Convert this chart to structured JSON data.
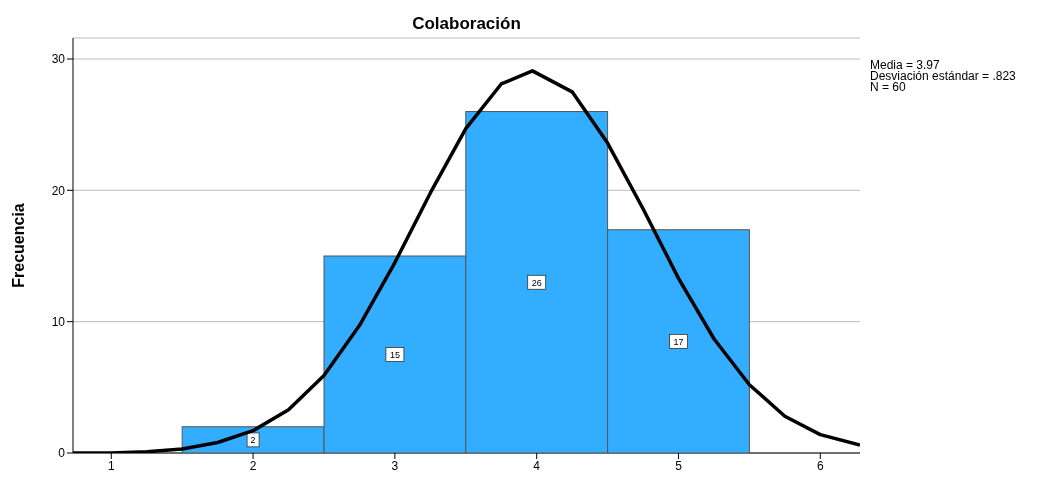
{
  "chart_data": {
    "type": "histogram",
    "title": "Colaboración",
    "ylabel": "Frecuencia",
    "bins": [
      1.5,
      2.5,
      3.5,
      4.5,
      5.5
    ],
    "values": [
      2,
      15,
      26,
      17
    ],
    "color": "#33adff",
    "value_labels": [
      "2",
      "15",
      "26",
      "17"
    ],
    "series": [
      {
        "type": "line",
        "color": "#000000",
        "x": [
          0.73,
          1.0,
          1.25,
          1.5,
          1.75,
          2.0,
          2.25,
          2.5,
          2.75,
          3.0,
          3.25,
          3.5,
          3.75,
          3.97,
          4.25,
          4.5,
          4.75,
          5.0,
          5.25,
          5.5,
          5.75,
          6.0,
          6.28
        ],
        "values": [
          0.0,
          0.0,
          0.1,
          0.3,
          0.8,
          1.7,
          3.3,
          5.9,
          9.7,
          14.5,
          19.8,
          24.7,
          28.1,
          29.1,
          27.5,
          23.6,
          18.6,
          13.3,
          8.7,
          5.2,
          2.8,
          1.4,
          0.6
        ]
      }
    ],
    "xlim": [
      0.73,
      6.28
    ],
    "xticks": [
      1,
      2,
      3,
      4,
      5,
      6
    ],
    "ylim": [
      0,
      31.6
    ],
    "yticks": [
      0,
      10,
      20,
      30
    ],
    "grid": "y",
    "annotations": [
      "Media = 3.97",
      "Desviación estándar = .823",
      "N = 60"
    ]
  }
}
